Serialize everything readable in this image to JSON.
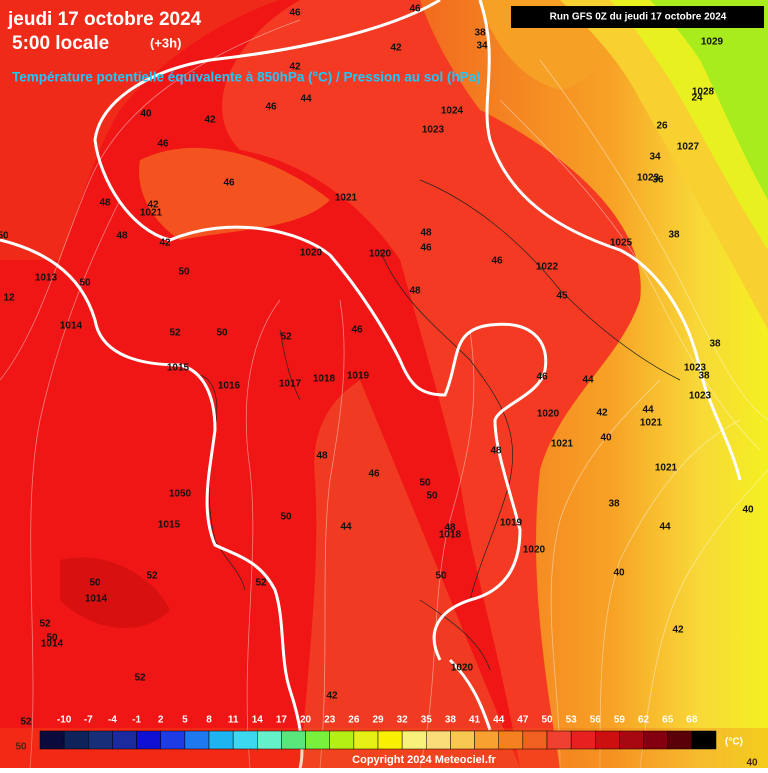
{
  "header": {
    "date": "jeudi 17 octobre 2024",
    "time": "5:00 locale",
    "offset": "(+3h)",
    "subtitle": "Température potentielle équivalente à 850hPa (°C) / Pression au sol (hPa)",
    "run": "Run GFS 0Z du jeudi 17 octobre 2024"
  },
  "map_labels": [
    46,
    46,
    38,
    34,
    42,
    42,
    44,
    46,
    42,
    40,
    46,
    1023,
    1024,
    46,
    48,
    1021,
    42,
    48,
    42,
    1021,
    1020,
    1020,
    48,
    46,
    46,
    1022,
    1025,
    45,
    48,
    1013,
    50,
    12,
    50,
    1014,
    52,
    50,
    52,
    46,
    1015,
    1016,
    1017,
    1018,
    1019,
    46,
    44,
    1020,
    42,
    44,
    1021,
    1021,
    40,
    48,
    48,
    46,
    1021,
    1050,
    50,
    50,
    38,
    1015,
    50,
    44,
    48,
    1018,
    1019,
    44,
    1020,
    52,
    50,
    1014,
    52,
    50,
    40,
    52,
    50,
    1014,
    42,
    1020,
    52,
    42,
    52,
    50,
    40,
    40,
    1029,
    1028,
    24,
    1027,
    26,
    1023,
    36,
    34,
    38,
    38,
    1023,
    38,
    1023,
    50
  ],
  "colorbar": {
    "labels": [
      -10,
      -7,
      -4,
      -1,
      2,
      5,
      8,
      11,
      14,
      17,
      20,
      23,
      26,
      29,
      32,
      35,
      38,
      41,
      44,
      47,
      50,
      53,
      56,
      59,
      62,
      65,
      68
    ],
    "colors": [
      "#0a0a3c",
      "#10225a",
      "#182e78",
      "#1c2aa0",
      "#1010d2",
      "#1e3ce6",
      "#1e78f0",
      "#1eb4f0",
      "#3cd8f0",
      "#64f0c8",
      "#5ae67a",
      "#78f03c",
      "#b4f014",
      "#e6f014",
      "#f8f000",
      "#f8f07a",
      "#fadc78",
      "#f8c850",
      "#f8a030",
      "#f48020",
      "#f06020",
      "#f04030",
      "#e82020",
      "#cc1010",
      "#a80810",
      "#840010",
      "#5a0008",
      "#000000"
    ],
    "unit": "(°C)"
  },
  "footer": {
    "copyright": "Copyright 2024 Meteociel.fr"
  }
}
